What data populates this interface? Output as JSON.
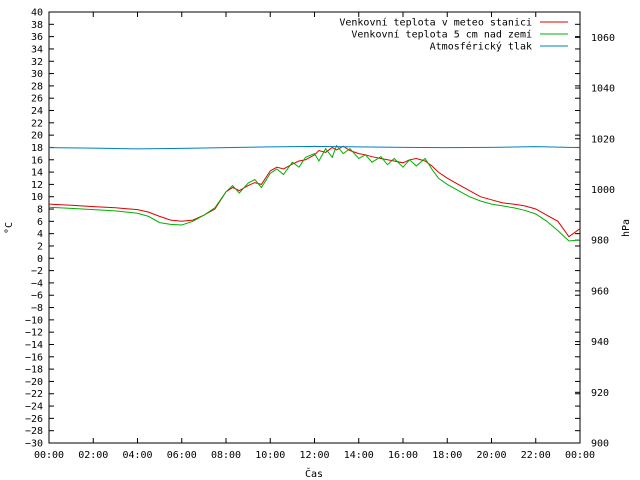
{
  "chart_data": {
    "type": "line",
    "xlabel": "Čas",
    "ylabel": "°C",
    "y2label": "hPa",
    "ylim": [
      -30,
      40
    ],
    "y2lim": [
      900,
      1070
    ],
    "xlim": [
      0,
      24
    ],
    "x_ticks": [
      "00:00",
      "02:00",
      "04:00",
      "06:00",
      "08:00",
      "10:00",
      "12:00",
      "14:00",
      "16:00",
      "18:00",
      "20:00",
      "22:00",
      "00:00"
    ],
    "y_ticks": [
      40,
      38,
      36,
      34,
      32,
      30,
      28,
      26,
      24,
      22,
      20,
      18,
      16,
      14,
      12,
      10,
      8,
      6,
      4,
      2,
      0,
      -2,
      -4,
      -6,
      -8,
      -10,
      -12,
      -14,
      -16,
      -18,
      -20,
      -22,
      -24,
      -26,
      -28,
      -30
    ],
    "y2_ticks": [
      1060,
      1040,
      1020,
      1000,
      980,
      960,
      940,
      920,
      900
    ],
    "legend_position": "top-right",
    "grid": false,
    "series": [
      {
        "name": "Venkovní teplota v meteo stanici",
        "color": "#e00000",
        "axis": "left",
        "x": [
          0,
          1,
          2,
          3,
          4,
          4.5,
          5,
          5.5,
          6,
          6.5,
          7,
          7.5,
          8,
          8.3,
          8.6,
          9,
          9.3,
          9.6,
          10,
          10.3,
          10.6,
          11,
          11.3,
          11.6,
          12,
          12.2,
          12.5,
          12.8,
          13,
          13.3,
          13.6,
          14,
          14.3,
          14.6,
          15,
          15.3,
          15.6,
          16,
          16.3,
          16.6,
          17,
          17.3,
          17.6,
          18,
          18.5,
          19,
          19.5,
          20,
          20.5,
          21,
          21.5,
          22,
          22.5,
          23,
          23.5,
          24
        ],
        "y": [
          8.8,
          8.6,
          8.4,
          8.2,
          7.9,
          7.5,
          6.8,
          6.2,
          6.0,
          6.2,
          7.0,
          8.0,
          10.8,
          11.5,
          11.0,
          11.8,
          12.3,
          12.0,
          14.2,
          14.8,
          14.5,
          15.3,
          15.8,
          16.0,
          16.8,
          17.5,
          17.2,
          18.0,
          17.6,
          18.2,
          17.5,
          17.0,
          16.8,
          16.5,
          16.2,
          16.0,
          15.8,
          15.5,
          16.0,
          16.2,
          15.8,
          15.0,
          14.0,
          13.0,
          12.0,
          11.0,
          10.0,
          9.5,
          9.0,
          8.8,
          8.5,
          8.0,
          7.0,
          6.0,
          3.5,
          4.8
        ]
      },
      {
        "name": "Venkovní teplota 5 cm nad zemí",
        "color": "#00b000",
        "axis": "left",
        "x": [
          0,
          1,
          2,
          3,
          4,
          4.5,
          5,
          5.5,
          6,
          6.5,
          7,
          7.5,
          8,
          8.3,
          8.6,
          9,
          9.3,
          9.6,
          10,
          10.3,
          10.6,
          11,
          11.3,
          11.6,
          12,
          12.2,
          12.5,
          12.8,
          13,
          13.3,
          13.6,
          14,
          14.3,
          14.6,
          15,
          15.3,
          15.6,
          16,
          16.3,
          16.6,
          17,
          17.3,
          17.6,
          18,
          18.5,
          19,
          19.5,
          20,
          20.5,
          21,
          21.5,
          22,
          22.5,
          23,
          23.5,
          24
        ],
        "y": [
          8.3,
          8.1,
          7.9,
          7.7,
          7.3,
          6.8,
          5.8,
          5.5,
          5.4,
          6.0,
          7.0,
          8.2,
          10.8,
          11.8,
          10.6,
          12.2,
          12.8,
          11.5,
          13.8,
          14.5,
          13.6,
          15.6,
          14.8,
          16.4,
          17.0,
          15.8,
          17.8,
          16.4,
          18.3,
          17.0,
          17.8,
          16.2,
          16.8,
          15.6,
          16.5,
          15.2,
          16.2,
          14.8,
          16.0,
          15.0,
          16.2,
          14.5,
          13.0,
          12.0,
          11.0,
          10.0,
          9.3,
          8.8,
          8.5,
          8.2,
          7.8,
          7.2,
          6.0,
          4.5,
          2.8,
          3.0
        ]
      },
      {
        "name": "Atmosférický tlak",
        "color": "#0080c0",
        "axis": "right",
        "x": [
          0,
          2,
          4,
          6,
          8,
          10,
          12,
          14,
          16,
          18,
          20,
          22,
          24
        ],
        "y": [
          1016.5,
          1016.3,
          1016.0,
          1016.2,
          1016.5,
          1016.8,
          1017.0,
          1016.8,
          1016.6,
          1016.5,
          1016.6,
          1016.9,
          1016.5
        ]
      }
    ]
  }
}
